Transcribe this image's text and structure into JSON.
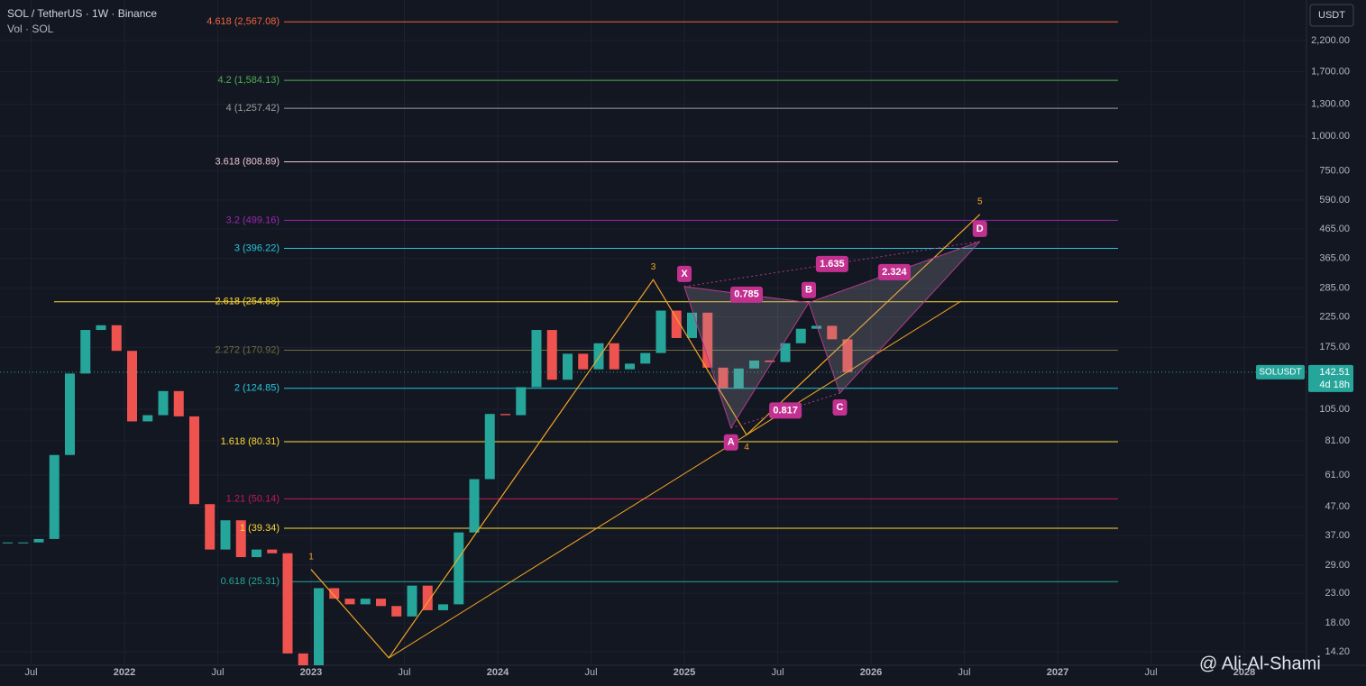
{
  "chart_data": {
    "type": "candlestick",
    "title": "SOL / TetherUS · 1W · Binance",
    "subtitle": "Vol · SOL",
    "currency": "USDT",
    "last_price": 142.51,
    "countdown": "4d 18h",
    "watermark": "@ Ali-Al-Shami",
    "log_scale": true,
    "x": [
      "2021-05",
      "2021-06",
      "2021-07",
      "2021-08",
      "2021-09",
      "2021-10",
      "2021-11",
      "2021-12",
      "2022-01",
      "2022-02",
      "2022-03",
      "2022-04",
      "2022-05",
      "2022-06",
      "2022-07",
      "2022-08",
      "2022-09",
      "2022-10",
      "2022-11",
      "2022-12",
      "2023-01",
      "2023-02",
      "2023-03",
      "2023-04",
      "2023-05",
      "2023-06",
      "2023-07",
      "2023-08",
      "2023-09",
      "2023-10",
      "2023-11",
      "2023-12",
      "2024-01",
      "2024-02",
      "2024-03",
      "2024-04",
      "2024-05",
      "2024-06",
      "2024-07",
      "2024-08",
      "2024-09",
      "2024-10",
      "2024-11",
      "2024-12",
      "2025-01",
      "2025-02",
      "2025-03",
      "2025-04",
      "2025-05",
      "2025-06",
      "2025-07",
      "2025-08",
      "2025-09",
      "2025-10",
      "2025-11"
    ],
    "series": [
      {
        "name": "SOLUSDT",
        "up_color": "#26a69a",
        "down_color": "#ef5350",
        "values": [
          35,
          35,
          36,
          72,
          141,
          202,
          210,
          170,
          95,
          100,
          122,
          99,
          48,
          33,
          42,
          31,
          33,
          32,
          14,
          10,
          24,
          22,
          21,
          22,
          20.7,
          19,
          24.5,
          20,
          21,
          38,
          59,
          101,
          100,
          126,
          202,
          134,
          166,
          146,
          181,
          146,
          153,
          167,
          237,
          189,
          233,
          148,
          125,
          147,
          157,
          155,
          181,
          204,
          209,
          187,
          142.51
        ]
      }
    ],
    "xlim": [
      "2021-05",
      "2028-05"
    ],
    "xticks": [
      {
        "value": "2021-07",
        "label": "Jul"
      },
      {
        "value": "2022-01",
        "label": "2022"
      },
      {
        "value": "2022-07",
        "label": "Jul"
      },
      {
        "value": "2023-01",
        "label": "2023"
      },
      {
        "value": "2023-07",
        "label": "Jul"
      },
      {
        "value": "2024-01",
        "label": "2024"
      },
      {
        "value": "2024-07",
        "label": "Jul"
      },
      {
        "value": "2025-01",
        "label": "2025"
      },
      {
        "value": "2025-07",
        "label": "Jul"
      },
      {
        "value": "2026-01",
        "label": "2026"
      },
      {
        "value": "2026-07",
        "label": "Jul"
      },
      {
        "value": "2027-01",
        "label": "2027"
      },
      {
        "value": "2027-07",
        "label": "Jul"
      },
      {
        "value": "2028-01",
        "label": "2028"
      }
    ],
    "ylim": [
      12.7,
      3074
    ],
    "yticks": [
      {
        "value": 2200,
        "label": "2,200.00"
      },
      {
        "value": 1700,
        "label": "1,700.00"
      },
      {
        "value": 1300,
        "label": "1,300.00"
      },
      {
        "value": 1000,
        "label": "1,000.00"
      },
      {
        "value": 750,
        "label": "750.00"
      },
      {
        "value": 590,
        "label": "590.00"
      },
      {
        "value": 465,
        "label": "465.00"
      },
      {
        "value": 365,
        "label": "365.00"
      },
      {
        "value": 285,
        "label": "285.00"
      },
      {
        "value": 225,
        "label": "225.00"
      },
      {
        "value": 175,
        "label": "175.00"
      },
      {
        "value": 105,
        "label": "105.00"
      },
      {
        "value": 81,
        "label": "81.00"
      },
      {
        "value": 61,
        "label": "61.00"
      },
      {
        "value": 47,
        "label": "47.00"
      },
      {
        "value": 37,
        "label": "37.00"
      },
      {
        "value": 29,
        "label": "29.00"
      },
      {
        "value": 23,
        "label": "23.00"
      },
      {
        "value": 18,
        "label": "18.00"
      },
      {
        "value": 14.2,
        "label": "14.20"
      }
    ],
    "fib_levels": [
      {
        "label": "4.618 (2,567.08)",
        "value": 2567.08,
        "color": "#f0643c"
      },
      {
        "label": "4.2 (1,584.13)",
        "value": 1584.13,
        "color": "#4caf50"
      },
      {
        "label": "4 (1,257.42)",
        "value": 1257.42,
        "color": "#9e9e9e"
      },
      {
        "label": "3.618 (808.89)",
        "value": 808.89,
        "color": "#e8c4d0"
      },
      {
        "label": "3.2 (499.16)",
        "value": 499.16,
        "color": "#9c27b0"
      },
      {
        "label": "3 (396.22)",
        "value": 396.22,
        "color": "#26c6da"
      },
      {
        "label": "2.618 (254.88)",
        "value": 254.88,
        "color": "#fdd835"
      },
      {
        "label": "2.272 (170.92)",
        "value": 170.92,
        "color": "#6e6e40"
      },
      {
        "label": "2 (124.85)",
        "value": 124.85,
        "color": "#26c6da"
      },
      {
        "label": "1.618 (80.31)",
        "value": 80.31,
        "color": "#fdd835"
      },
      {
        "label": "1.21 (50.14)",
        "value": 50.14,
        "color": "#c2185b"
      },
      {
        "label": "1 (39.34)",
        "value": 39.34,
        "color": "#fdd835"
      },
      {
        "label": "0.618 (25.31)",
        "value": 25.31,
        "color": "#26a69a"
      }
    ],
    "harmonic": {
      "points": [
        {
          "label": "X",
          "x": "2025-01",
          "value": 289
        },
        {
          "label": "A",
          "x": "2025-04",
          "value": 90
        },
        {
          "label": "B",
          "x": "2025-09",
          "value": 253
        },
        {
          "label": "C",
          "x": "2025-11",
          "value": 120
        },
        {
          "label": "D",
          "x": "2026-08",
          "value": 419
        }
      ],
      "ratios": [
        {
          "label": "0.785",
          "from": "X",
          "to": "B"
        },
        {
          "label": "1.635",
          "from": "X",
          "to": "D"
        },
        {
          "label": "0.817",
          "from": "A",
          "to": "C"
        },
        {
          "label": "2.324",
          "from": "B",
          "to": "D"
        }
      ]
    },
    "waves": {
      "points": [
        {
          "label": "1",
          "x": "2023-01",
          "value": 28
        },
        {
          "label": null,
          "x": "2023-06",
          "value": 13.5
        },
        {
          "label": "3",
          "x": "2024-11",
          "value": 306
        },
        {
          "label": "4",
          "x": "2025-05",
          "value": 85
        },
        {
          "label": "5",
          "x": "2026-08",
          "value": 524
        }
      ]
    }
  }
}
